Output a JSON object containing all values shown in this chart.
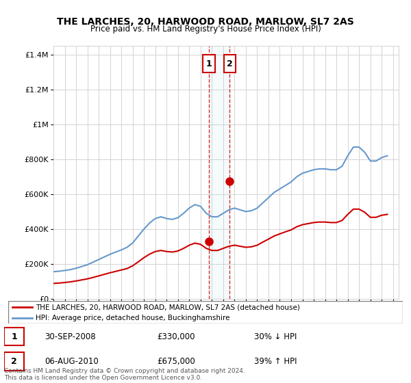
{
  "title": "THE LARCHES, 20, HARWOOD ROAD, MARLOW, SL7 2AS",
  "subtitle": "Price paid vs. HM Land Registry's House Price Index (HPI)",
  "ylabel_ticks": [
    "£0",
    "£200K",
    "£400K",
    "£600K",
    "£800K",
    "£1M",
    "£1.2M",
    "£1.4M"
  ],
  "ytick_values": [
    0,
    200000,
    400000,
    600000,
    800000,
    1000000,
    1200000,
    1400000
  ],
  "ylim": [
    0,
    1450000
  ],
  "xlim_start": 1995,
  "xlim_end": 2025.5,
  "red_color": "#cc0000",
  "blue_color": "#6699cc",
  "transaction_color": "#cc0000",
  "marker_color": "#cc0000",
  "purchase1": {
    "date": 2008.75,
    "price": 330000,
    "label": "1",
    "pct": "30% ↓ HPI",
    "date_str": "30-SEP-2008"
  },
  "purchase2": {
    "date": 2010.58,
    "price": 675000,
    "label": "2",
    "pct": "39% ↑ HPI",
    "date_str": "06-AUG-2010"
  },
  "legend_label_red": "THE LARCHES, 20, HARWOOD ROAD, MARLOW, SL7 2AS (detached house)",
  "legend_label_blue": "HPI: Average price, detached house, Buckinghamshire",
  "footer": "Contains HM Land Registry data © Crown copyright and database right 2024.\nThis data is licensed under the Open Government Licence v3.0.",
  "hpi_years": [
    1995,
    1995.5,
    1996,
    1996.5,
    1997,
    1997.5,
    1998,
    1998.5,
    1999,
    1999.5,
    2000,
    2000.5,
    2001,
    2001.5,
    2002,
    2002.5,
    2003,
    2003.5,
    2004,
    2004.5,
    2005,
    2005.5,
    2006,
    2006.5,
    2007,
    2007.5,
    2008,
    2008.5,
    2009,
    2009.5,
    2010,
    2010.5,
    2011,
    2011.5,
    2012,
    2012.5,
    2013,
    2013.5,
    2014,
    2014.5,
    2015,
    2015.5,
    2016,
    2016.5,
    2017,
    2017.5,
    2018,
    2018.5,
    2019,
    2019.5,
    2020,
    2020.5,
    2021,
    2021.5,
    2022,
    2022.5,
    2023,
    2023.5,
    2024,
    2024.5
  ],
  "hpi_values": [
    155000,
    158000,
    162000,
    167000,
    175000,
    185000,
    195000,
    210000,
    225000,
    240000,
    255000,
    268000,
    280000,
    295000,
    320000,
    360000,
    400000,
    435000,
    460000,
    470000,
    460000,
    455000,
    465000,
    490000,
    520000,
    540000,
    530000,
    490000,
    470000,
    470000,
    490000,
    510000,
    520000,
    510000,
    500000,
    505000,
    520000,
    550000,
    580000,
    610000,
    630000,
    650000,
    670000,
    700000,
    720000,
    730000,
    740000,
    745000,
    745000,
    740000,
    740000,
    760000,
    820000,
    870000,
    870000,
    840000,
    790000,
    790000,
    810000,
    820000
  ],
  "red_years": [
    1995,
    1995.5,
    1996,
    1996.5,
    1997,
    1997.5,
    1998,
    1998.5,
    1999,
    1999.5,
    2000,
    2000.5,
    2001,
    2001.5,
    2002,
    2002.5,
    2003,
    2003.5,
    2004,
    2004.5,
    2005,
    2005.5,
    2006,
    2006.5,
    2007,
    2007.5,
    2008,
    2008.5,
    2009,
    2009.5,
    2010,
    2010.5,
    2011,
    2011.5,
    2012,
    2012.5,
    2013,
    2013.5,
    2014,
    2014.5,
    2015,
    2015.5,
    2016,
    2016.5,
    2017,
    2017.5,
    2018,
    2018.5,
    2019,
    2019.5,
    2020,
    2020.5,
    2021,
    2021.5,
    2022,
    2022.5,
    2023,
    2023.5,
    2024,
    2024.5
  ],
  "red_values": [
    88000,
    90000,
    93000,
    97000,
    102000,
    108000,
    114000,
    122000,
    131000,
    140000,
    149000,
    157000,
    165000,
    173000,
    189000,
    212000,
    236000,
    256000,
    271000,
    277000,
    271000,
    268000,
    274000,
    289000,
    307000,
    319000,
    312000,
    289000,
    277000,
    277000,
    289000,
    301000,
    307000,
    301000,
    295000,
    298000,
    307000,
    325000,
    342000,
    360000,
    372000,
    384000,
    395000,
    413000,
    425000,
    431000,
    437000,
    440000,
    440000,
    437000,
    437000,
    449000,
    484000,
    514000,
    514000,
    496000,
    467000,
    467000,
    479000,
    484000
  ]
}
